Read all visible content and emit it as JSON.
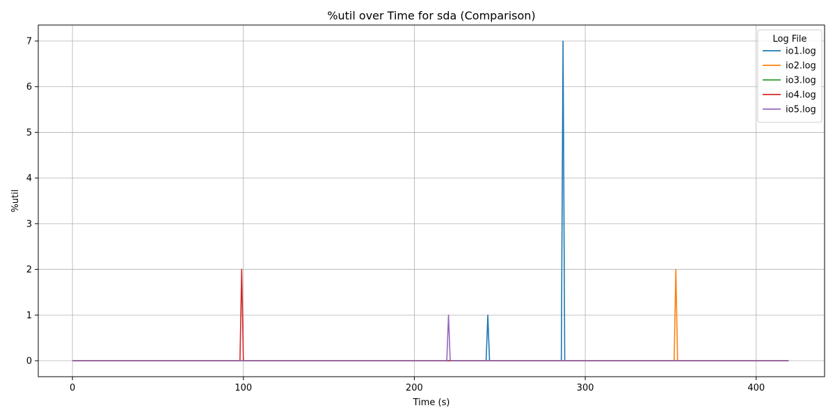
{
  "chart_data": {
    "type": "line",
    "title": "%util over Time for sda (Comparison)",
    "xlabel": "Time (s)",
    "ylabel": "%util",
    "xlim": [
      -20,
      440
    ],
    "ylim": [
      -0.35,
      7.35
    ],
    "xticks": [
      0,
      100,
      200,
      300,
      400
    ],
    "yticks": [
      0,
      1,
      2,
      3,
      4,
      5,
      6,
      7
    ],
    "grid": true,
    "legend": {
      "title": "Log File",
      "placement": "top-right"
    },
    "series": [
      {
        "name": "io1.log",
        "color": "#1f77b4",
        "x": [
          0,
          242,
          243,
          244,
          286,
          287,
          288,
          419
        ],
        "y": [
          0,
          0,
          1,
          0,
          0,
          7,
          0,
          0
        ]
      },
      {
        "name": "io2.log",
        "color": "#ff7f0e",
        "x": [
          0,
          352,
          353,
          354,
          419
        ],
        "y": [
          0,
          0,
          2,
          0,
          0
        ]
      },
      {
        "name": "io3.log",
        "color": "#2ca02c",
        "x": [
          0,
          419
        ],
        "y": [
          0,
          0
        ]
      },
      {
        "name": "io4.log",
        "color": "#d62728",
        "x": [
          0,
          98,
          99,
          100,
          419
        ],
        "y": [
          0,
          0,
          2,
          0,
          0
        ]
      },
      {
        "name": "io5.log",
        "color": "#9467bd",
        "x": [
          0,
          219,
          220,
          221,
          419
        ],
        "y": [
          0,
          0,
          1,
          0,
          0
        ]
      }
    ]
  }
}
